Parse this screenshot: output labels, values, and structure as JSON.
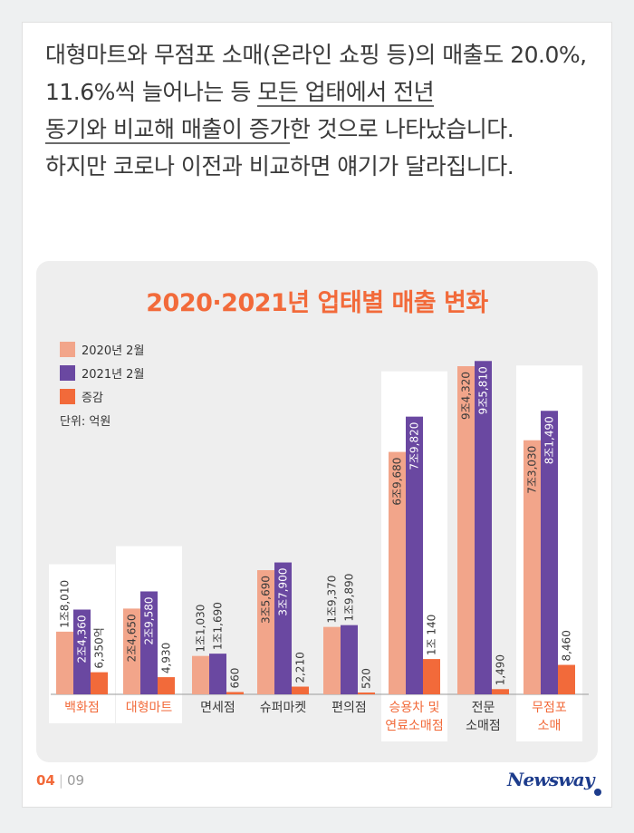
{
  "intro": {
    "p1": "대형마트와 무점포 소매(온라인 쇼핑 등)의 매출도 20.0%, 11.6%씩 늘어나는 등 ",
    "ul1": "모든 업태에서 전년",
    "ul2": "동기와 비교해 매출이 증가",
    "p2": "한 것으로 나타났습니다.",
    "p3": "하지만 코로나 이전과 비교하면 얘기가 달라집니다."
  },
  "colors": {
    "s2020": "#f2a58a",
    "s2021": "#6a48a1",
    "change": "#f26a3a",
    "highlight_text": "#f26a3a",
    "brand": "#1d3c8c"
  },
  "chart_data": {
    "type": "bar",
    "title": "2020·2021년 업태별 매출 변화",
    "unit_label": "단위: 억원",
    "legend_position": "top-left",
    "categories": [
      "백화점",
      "대형마트",
      "면세점",
      "슈퍼마켓",
      "편의점",
      "승용차 및\n연료소매점",
      "전문\n소매점",
      "무점포\n소매"
    ],
    "highlighted": [
      true,
      true,
      false,
      false,
      false,
      true,
      false,
      true
    ],
    "series": [
      {
        "name": "2020년 2월",
        "values": [
          18010,
          24650,
          11030,
          35690,
          19370,
          69680,
          94320,
          73030
        ],
        "labels": [
          "1조8,010",
          "2조4,650",
          "1조1,030",
          "3조5,690",
          "1조9,370",
          "6조9,680",
          "9조4,320",
          "7조3,030"
        ]
      },
      {
        "name": "2021년 2월",
        "values": [
          24360,
          29580,
          11690,
          37900,
          19890,
          79820,
          95810,
          81490
        ],
        "labels": [
          "2조4,360",
          "2조9,580",
          "1조1,690",
          "3조7,900",
          "1조9,890",
          "7조9,820",
          "9조5,810",
          "8조1,490"
        ]
      },
      {
        "name": "증감",
        "values": [
          6350,
          4930,
          660,
          2210,
          520,
          10140,
          1490,
          8460
        ],
        "labels": [
          "6,350억",
          "4,930",
          "660",
          "2,210",
          "520",
          "1조 140",
          "1,490",
          "8,460"
        ]
      }
    ],
    "ylim": [
      0,
      100000
    ],
    "grid": false
  },
  "footer": {
    "page": "04",
    "total": "09"
  },
  "logo": "Newsway"
}
